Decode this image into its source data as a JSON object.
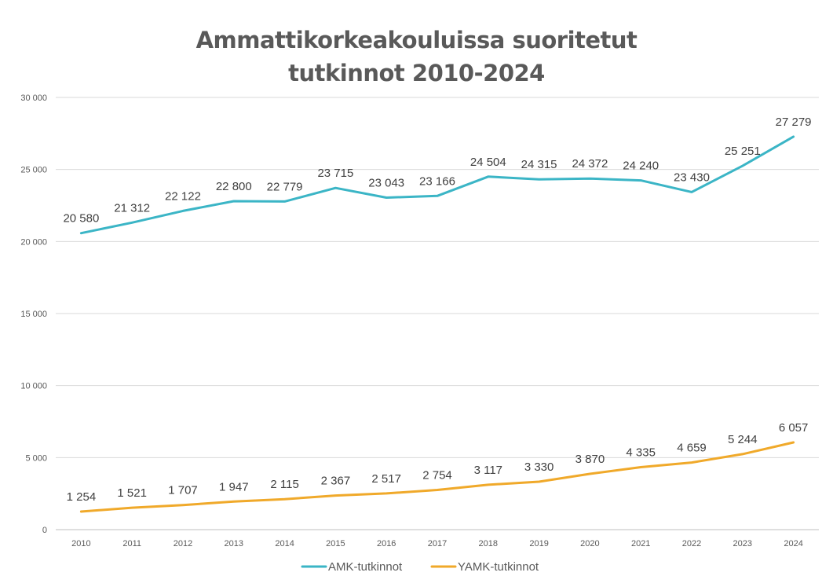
{
  "chart_data": {
    "type": "line",
    "title": [
      "Ammattikorkeakouluissa suoritetut",
      "tutkinnot 2010-2024"
    ],
    "xlabel": "",
    "ylabel": "",
    "x": [
      "2010",
      "2011",
      "2012",
      "2013",
      "2014",
      "2015",
      "2016",
      "2017",
      "2018",
      "2019",
      "2020",
      "2021",
      "2022",
      "2023",
      "2024"
    ],
    "ylim": [
      0,
      30000
    ],
    "yticks": [
      0,
      5000,
      10000,
      15000,
      20000,
      25000,
      30000
    ],
    "ytick_labels": [
      "0",
      "5 000",
      "10 000",
      "15 000",
      "20 000",
      "25 000",
      "30 000"
    ],
    "grid": true,
    "legend_position": "bottom",
    "series": [
      {
        "name": "AMK-tutkinnot",
        "color": "#3bb5c6",
        "values": [
          20580,
          21312,
          22122,
          22800,
          22779,
          23715,
          23043,
          23166,
          24504,
          24315,
          24372,
          24240,
          23430,
          25251,
          27279
        ],
        "labels": [
          "20 580",
          "21 312",
          "22 122",
          "22 800",
          "22 779",
          "23 715",
          "23 043",
          "23 166",
          "24 504",
          "24 315",
          "24 372",
          "24 240",
          "23 430",
          "25 251",
          "27 279"
        ]
      },
      {
        "name": "YAMK-tutkinnot",
        "color": "#f0a92a",
        "values": [
          1254,
          1521,
          1707,
          1947,
          2115,
          2367,
          2517,
          2754,
          3117,
          3330,
          3870,
          4335,
          4659,
          5244,
          6057
        ],
        "labels": [
          "1 254",
          "1 521",
          "1 707",
          "1 947",
          "2 115",
          "2 367",
          "2 517",
          "2 754",
          "3 117",
          "3 330",
          "3 870",
          "4 335",
          "4 659",
          "5 244",
          "6 057"
        ]
      }
    ]
  }
}
